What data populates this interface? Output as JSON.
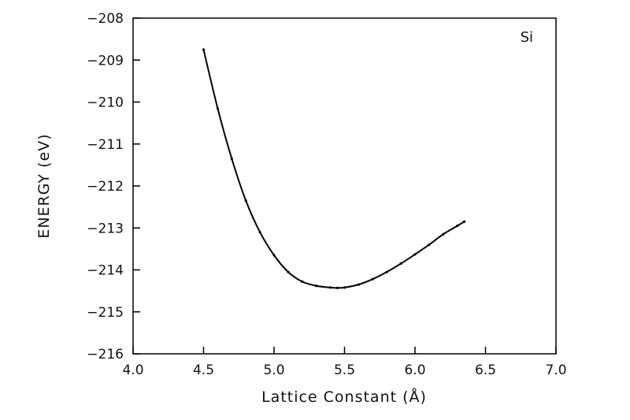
{
  "chart_data": {
    "type": "line",
    "annotation": "Si",
    "xlabel": "Lattice Constant (Å)",
    "ylabel": "ENERGY (eV)",
    "xlim": [
      4.0,
      7.0
    ],
    "ylim": [
      -216,
      -208
    ],
    "x_ticks": [
      "4.0",
      "4.5",
      "5.0",
      "5.5",
      "6.0",
      "6.5",
      "7.0"
    ],
    "y_ticks": [
      "−216",
      "−215",
      "−214",
      "−213",
      "−212",
      "−211",
      "−210",
      "−209",
      "−208"
    ],
    "grid": false,
    "series": [
      {
        "color": "#000000",
        "x": [
          4.5,
          4.6,
          4.7,
          4.8,
          4.9,
          5.0,
          5.1,
          5.2,
          5.3,
          5.4,
          5.45,
          5.5,
          5.6,
          5.7,
          5.8,
          5.9,
          6.0,
          6.1,
          6.2,
          6.3,
          6.35
        ],
        "y": [
          -208.75,
          -210.15,
          -211.35,
          -212.35,
          -213.1,
          -213.65,
          -214.05,
          -214.28,
          -214.38,
          -214.42,
          -214.43,
          -214.42,
          -214.35,
          -214.22,
          -214.05,
          -213.85,
          -213.63,
          -213.4,
          -213.15,
          -212.95,
          -212.85
        ]
      }
    ]
  }
}
